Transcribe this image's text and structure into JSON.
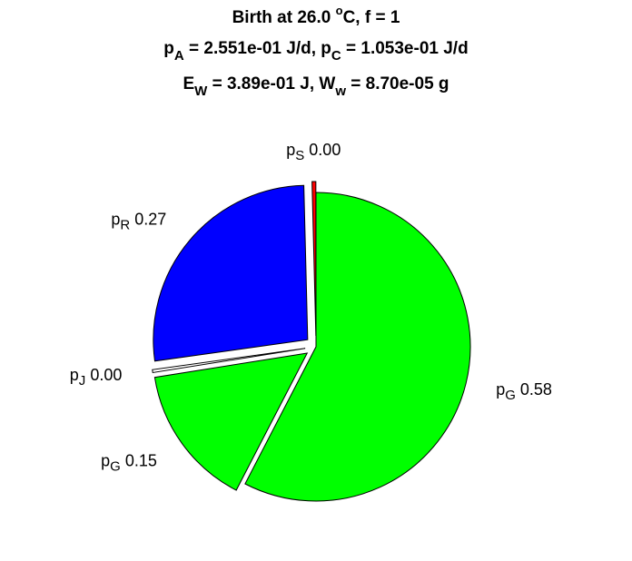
{
  "chart_data": {
    "type": "pie",
    "title": [
      [
        {
          "text": "Birth at 26.0 "
        },
        {
          "text": "o",
          "shift": "super"
        },
        {
          "text": "C, f = 1"
        }
      ],
      [
        {
          "text": "p"
        },
        {
          "text": "A",
          "shift": "sub"
        },
        {
          "text": " = 2.551e-01 J/d, p"
        },
        {
          "text": "C",
          "shift": "sub"
        },
        {
          "text": " = 1.053e-01 J/d"
        }
      ],
      [
        {
          "text": "E"
        },
        {
          "text": "W",
          "shift": "sub"
        },
        {
          "text": " = 3.89e-01 J, W"
        },
        {
          "text": "w",
          "shift": "sub"
        },
        {
          "text": " = 8.70e-05 g"
        }
      ]
    ],
    "categories": [
      {
        "symbol": "p",
        "subscript": "S"
      },
      {
        "symbol": "p",
        "subscript": "R"
      },
      {
        "symbol": "p",
        "subscript": "J"
      },
      {
        "symbol": "p",
        "subscript": "G"
      },
      {
        "symbol": "p",
        "subscript": "G"
      }
    ],
    "values": [
      0.004,
      0.27,
      0.003,
      0.15,
      0.58
    ],
    "value_labels": [
      "0.00",
      "0.27",
      "0.00",
      "0.15",
      "0.58"
    ],
    "colors": [
      "#ff0000",
      "#0000ff",
      "#ffffff",
      "#00ff00",
      "#00ff00"
    ],
    "explode": [
      true,
      true,
      true,
      true,
      false
    ],
    "start_angle": 90,
    "direction": "counterclockwise"
  }
}
